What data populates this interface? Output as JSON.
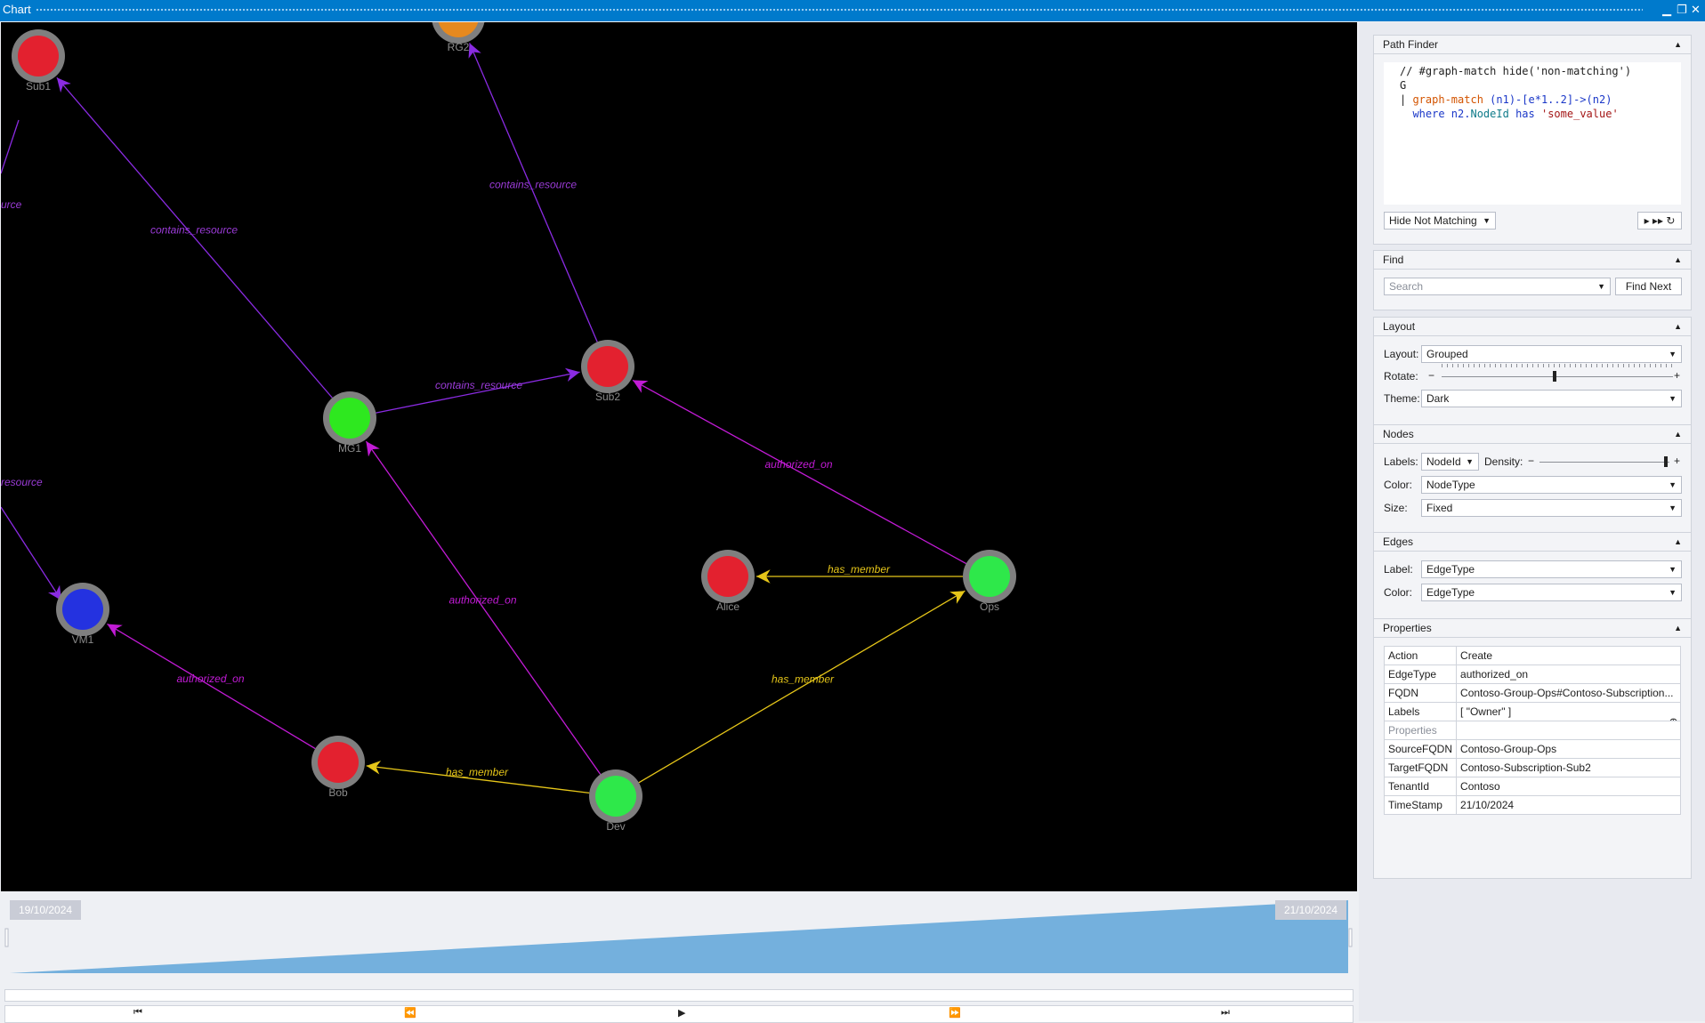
{
  "window": {
    "title": "Chart",
    "minimize": "▁",
    "restore": "❐",
    "close": "✕"
  },
  "graph": {
    "nodes": [
      {
        "id": "Sub1",
        "color": "#e3212f"
      },
      {
        "id": "RG2",
        "color": "#e6891f"
      },
      {
        "id": "Sub2",
        "color": "#e3212f"
      },
      {
        "id": "MG1",
        "color": "#2ee81f"
      },
      {
        "id": "VM1",
        "color": "#2432e0"
      },
      {
        "id": "Alice",
        "color": "#e3212f"
      },
      {
        "id": "Ops",
        "color": "#2ee84a"
      },
      {
        "id": "Bob",
        "color": "#e3212f"
      },
      {
        "id": "Dev",
        "color": "#2ee84a"
      }
    ],
    "edges": [
      {
        "from": "MG1",
        "to": "Sub1",
        "label": "contains_resource",
        "color": "#8a2be2"
      },
      {
        "from": "Sub2",
        "to": "RG2",
        "label": "contains_resource",
        "color": "#8a2be2"
      },
      {
        "from": "MG1",
        "to": "Sub2",
        "label": "contains_resource",
        "color": "#8a2be2"
      },
      {
        "from": "Ops",
        "to": "Sub2",
        "label": "authorized_on",
        "color": "#c21bd6"
      },
      {
        "from": "Dev",
        "to": "MG1",
        "label": "authorized_on",
        "color": "#c21bd6"
      },
      {
        "from": "Bob",
        "to": "VM1",
        "label": "authorized_on",
        "color": "#c21bd6"
      },
      {
        "from": "Ops",
        "to": "Alice",
        "label": "has_member",
        "color": "#e6c619"
      },
      {
        "from": "Dev",
        "to": "Ops",
        "label": "has_member",
        "color": "#e6c619"
      },
      {
        "from": "Dev",
        "to": "Bob",
        "label": "has_member",
        "color": "#e6c619"
      }
    ],
    "partial_edge_labels": [
      "urce",
      "resource"
    ]
  },
  "timeline": {
    "start_date": "19/10/2024",
    "end_date": "21/10/2024",
    "fill_color": "#74b0dd",
    "controls": {
      "first": "⏮",
      "prev": "⏪",
      "play": "▶",
      "next": "⏩",
      "last": "⏭"
    }
  },
  "path_finder": {
    "title": "Path Finder",
    "code_lines": {
      "l1": "// #graph-match hide('non-matching')",
      "l2": "G",
      "l3a": "| ",
      "l3b": "graph-match",
      "l3c": " (n1)-[e*1..2]->(n2)",
      "l4a": "  ",
      "l4b": "where",
      "l4c": " n2.",
      "l4d": "NodeId",
      "l4e": " has ",
      "l4f": "'some_value'"
    },
    "mode": "Hide Not Matching",
    "run_icon": "▸",
    "run_all_icon": "▸▸",
    "refresh_icon": "↻"
  },
  "find": {
    "title": "Find",
    "placeholder": "Search",
    "button": "Find Next"
  },
  "layout": {
    "title": "Layout",
    "layout_label": "Layout:",
    "layout_value": "Grouped",
    "rotate_label": "Rotate:",
    "rotate_minus": "−",
    "rotate_plus": "+",
    "theme_label": "Theme:",
    "theme_value": "Dark"
  },
  "nodes_section": {
    "title": "Nodes",
    "labels_label": "Labels:",
    "labels_value": "NodeId",
    "density_label": "Density:",
    "density_minus": "−",
    "density_plus": "+",
    "color_label": "Color:",
    "color_value": "NodeType",
    "size_label": "Size:",
    "size_value": "Fixed"
  },
  "edges_section": {
    "title": "Edges",
    "label_label": "Label:",
    "label_value": "EdgeType",
    "color_label": "Color:",
    "color_value": "EdgeType"
  },
  "properties": {
    "title": "Properties",
    "rows": [
      {
        "k": "Action",
        "v": "Create"
      },
      {
        "k": "EdgeType",
        "v": "authorized_on"
      },
      {
        "k": "FQDN",
        "v": "Contoso-Group-Ops#Contoso-Subscription..."
      },
      {
        "k": "Labels",
        "v": "[\n  \"Owner\"\n]"
      },
      {
        "k": "Properties",
        "v": ""
      },
      {
        "k": "SourceFQDN",
        "v": "Contoso-Group-Ops"
      },
      {
        "k": "TargetFQDN",
        "v": "Contoso-Subscription-Sub2"
      },
      {
        "k": "TenantId",
        "v": "Contoso"
      },
      {
        "k": "TimeStamp",
        "v": "21/10/2024"
      }
    ],
    "expand_icon": "⊕"
  }
}
